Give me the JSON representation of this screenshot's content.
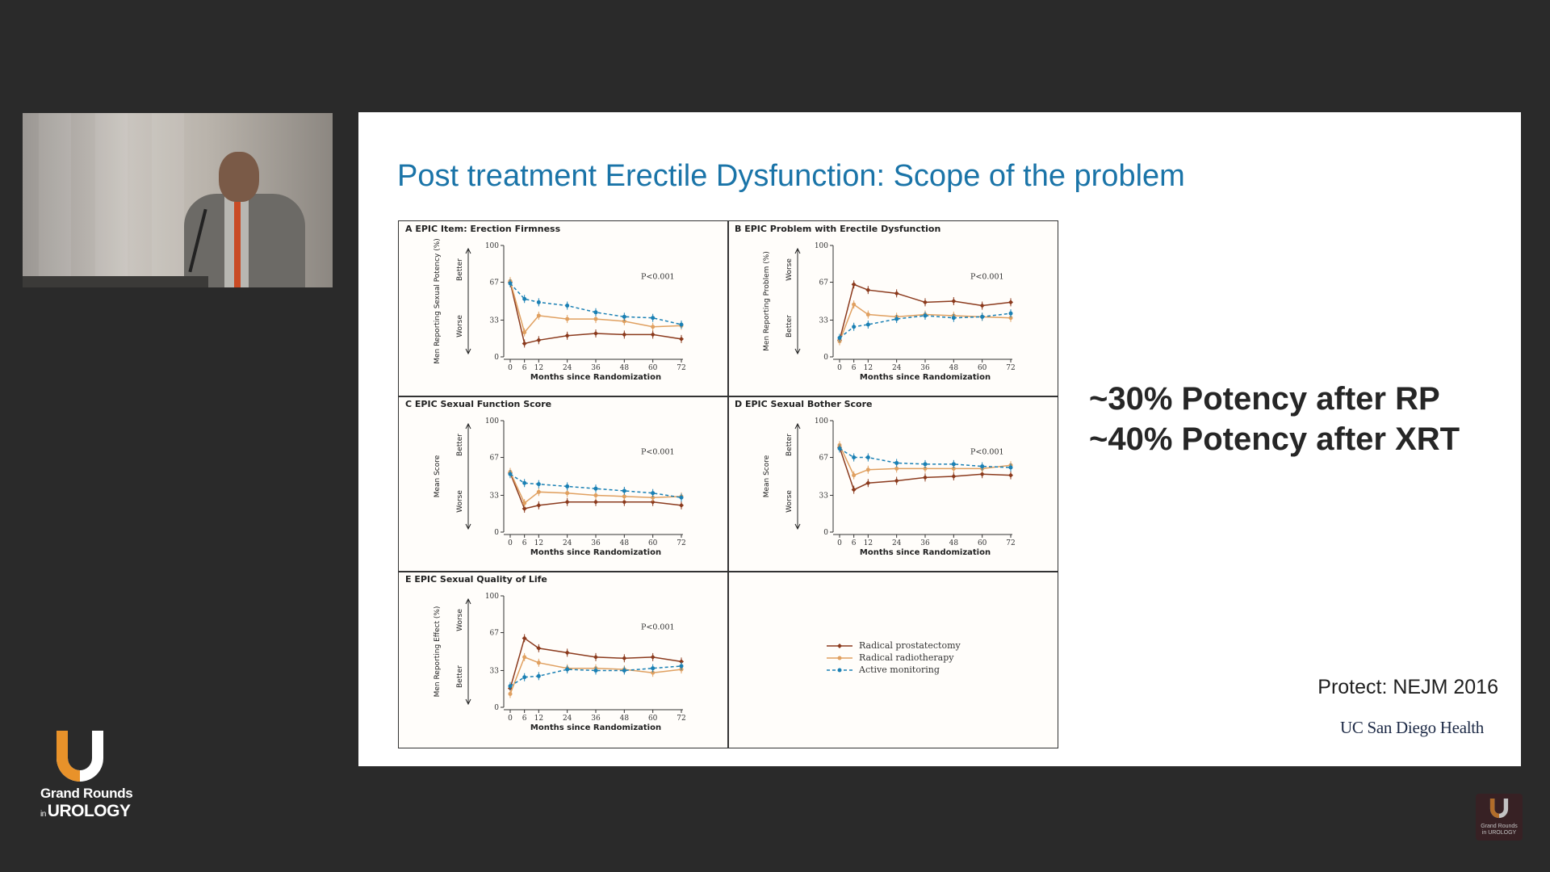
{
  "slide": {
    "title": "Post treatment Erectile Dysfunction: Scope of the problem",
    "potency_lines": [
      "~30% Potency after RP",
      "~40% Potency after XRT"
    ],
    "citation": "Protect: NEJM 2016",
    "institution": "UC San Diego Health"
  },
  "figure": {
    "x_label": "Months since Randomization",
    "x_ticks": [
      "0",
      "6",
      "12",
      "24",
      "36",
      "48",
      "60",
      "72"
    ],
    "y_ticks": [
      "0",
      "33",
      "67",
      "100"
    ],
    "legend": [
      {
        "label": "Radical prostatectomy",
        "color": "#8b3a1d",
        "marker": "diamond",
        "dash": "solid"
      },
      {
        "label": "Radical radiotherapy",
        "color": "#e0a060",
        "marker": "circle",
        "dash": "solid"
      },
      {
        "label": "Active monitoring",
        "color": "#1a80b4",
        "marker": "circle",
        "dash": "dashed"
      }
    ]
  },
  "chart_data": [
    {
      "type": "line",
      "panel": "A",
      "title": "EPIC Item: Erection Firmness",
      "ylabel": "Men Reporting Sexual Potency (%)",
      "direction_top": "Better",
      "direction_bottom": "Worse",
      "annotation": "P<0.001",
      "xlabel": "Months since Randomization",
      "x": [
        0,
        6,
        12,
        24,
        36,
        48,
        60,
        72
      ],
      "ylim": [
        0,
        100
      ],
      "series": [
        {
          "name": "Radical prostatectomy",
          "values": [
            67,
            12,
            15,
            19,
            21,
            20,
            20,
            16
          ]
        },
        {
          "name": "Radical radiotherapy",
          "values": [
            68,
            22,
            37,
            34,
            34,
            32,
            27,
            28
          ]
        },
        {
          "name": "Active monitoring",
          "values": [
            66,
            52,
            49,
            46,
            40,
            36,
            35,
            29
          ]
        }
      ]
    },
    {
      "type": "line",
      "panel": "B",
      "title": "EPIC Problem with Erectile Dysfunction",
      "ylabel": "Men Reporting Problem (%)",
      "direction_top": "Worse",
      "direction_bottom": "Better",
      "annotation": "P<0.001",
      "xlabel": "Months since Randomization",
      "x": [
        0,
        6,
        12,
        24,
        36,
        48,
        60,
        72
      ],
      "ylim": [
        0,
        100
      ],
      "series": [
        {
          "name": "Radical prostatectomy",
          "values": [
            15,
            65,
            60,
            57,
            49,
            50,
            46,
            49
          ]
        },
        {
          "name": "Radical radiotherapy",
          "values": [
            14,
            47,
            38,
            36,
            38,
            37,
            36,
            35
          ]
        },
        {
          "name": "Active monitoring",
          "values": [
            17,
            27,
            29,
            34,
            37,
            35,
            36,
            39
          ]
        }
      ]
    },
    {
      "type": "line",
      "panel": "C",
      "title": "EPIC Sexual Function Score",
      "ylabel": "Mean Score",
      "direction_top": "Better",
      "direction_bottom": "Worse",
      "annotation": "P<0.001",
      "xlabel": "Months since Randomization",
      "x": [
        0,
        6,
        12,
        24,
        36,
        48,
        60,
        72
      ],
      "ylim": [
        0,
        100
      ],
      "series": [
        {
          "name": "Radical prostatectomy",
          "values": [
            53,
            21,
            24,
            27,
            27,
            27,
            27,
            24
          ]
        },
        {
          "name": "Radical radiotherapy",
          "values": [
            54,
            26,
            36,
            35,
            33,
            32,
            31,
            32
          ]
        },
        {
          "name": "Active monitoring",
          "values": [
            52,
            44,
            43,
            41,
            39,
            37,
            35,
            31
          ]
        }
      ]
    },
    {
      "type": "line",
      "panel": "D",
      "title": "EPIC Sexual Bother Score",
      "ylabel": "Mean Score",
      "direction_top": "Better",
      "direction_bottom": "Worse",
      "annotation": "P<0.001",
      "xlabel": "Months since Randomization",
      "x": [
        0,
        6,
        12,
        24,
        36,
        48,
        60,
        72
      ],
      "ylim": [
        0,
        100
      ],
      "series": [
        {
          "name": "Radical prostatectomy",
          "values": [
            76,
            38,
            44,
            46,
            49,
            50,
            52,
            51
          ]
        },
        {
          "name": "Radical radiotherapy",
          "values": [
            78,
            51,
            56,
            57,
            57,
            57,
            57,
            60
          ]
        },
        {
          "name": "Active monitoring",
          "values": [
            75,
            67,
            67,
            62,
            61,
            61,
            59,
            58
          ]
        }
      ]
    },
    {
      "type": "line",
      "panel": "E",
      "title": "EPIC Sexual Quality of Life",
      "ylabel": "Men Reporting Effect (%)",
      "direction_top": "Worse",
      "direction_bottom": "Better",
      "annotation": "P<0.001",
      "xlabel": "Months since Randomization",
      "x": [
        0,
        6,
        12,
        24,
        36,
        48,
        60,
        72
      ],
      "ylim": [
        0,
        100
      ],
      "series": [
        {
          "name": "Radical prostatectomy",
          "values": [
            17,
            62,
            53,
            49,
            45,
            44,
            45,
            41
          ]
        },
        {
          "name": "Radical radiotherapy",
          "values": [
            12,
            45,
            40,
            35,
            35,
            34,
            31,
            34
          ]
        },
        {
          "name": "Active monitoring",
          "values": [
            19,
            27,
            28,
            34,
            33,
            33,
            35,
            37
          ]
        }
      ]
    }
  ],
  "branding": {
    "logo_line1": "Grand Rounds",
    "logo_in": "in",
    "logo_line2": "UROLOGY",
    "logo_colors": {
      "u_outer": "#ffffff",
      "u_inner": "#e8922a"
    },
    "watermark_line1": "Grand Rounds",
    "watermark_line2": "in UROLOGY"
  }
}
